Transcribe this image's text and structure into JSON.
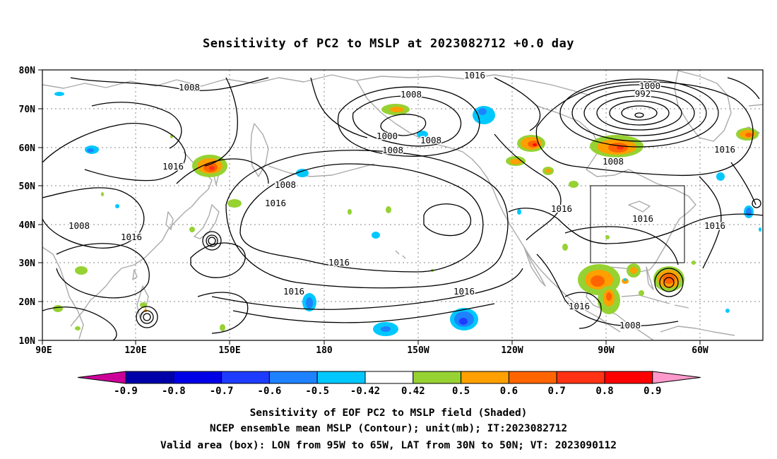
{
  "title": "Sensitivity of PC2 to MSLP at 2023082712 +0.0 day",
  "axes": {
    "lat_labels": [
      "80N",
      "70N",
      "60N",
      "50N",
      "40N",
      "30N",
      "20N",
      "10N"
    ],
    "lon_labels": [
      "90E",
      "120E",
      "150E",
      "180",
      "150W",
      "120W",
      "90W",
      "60W"
    ]
  },
  "colorbar": {
    "labels": [
      "-0.9",
      "-0.8",
      "-0.7",
      "-0.6",
      "-0.5",
      "-0.42",
      "0.42",
      "0.5",
      "0.6",
      "0.7",
      "0.8",
      "0.9"
    ],
    "colors": [
      "#cc0099",
      "#0000a8",
      "#0000e6",
      "#1e3cff",
      "#1e82ff",
      "#00c8ff",
      "#ffffff",
      "#96d232",
      "#ffa000",
      "#ff6400",
      "#ff3214",
      "#ff0000",
      "#ff99cc"
    ]
  },
  "contour_labels": [
    "1008",
    "1016",
    "1008",
    "1016",
    "1008",
    "1008",
    "1008",
    "1016",
    "1000",
    "1008",
    "1016",
    "1016",
    "1016",
    "1016",
    "1016",
    "1000",
    "992",
    "1016",
    "1008",
    "1016",
    "1016",
    "1016",
    "1008"
  ],
  "valid_box": {
    "lon_west": -95,
    "lon_east": -65,
    "lat_south": 30,
    "lat_north": 50
  },
  "captions": [
    "Sensitivity of EOF PC2 to MSLP field (Shaded)",
    "NCEP ensemble mean MSLP (Contour); unit(mb); IT:2023082712",
    "Valid area (box): LON from 95W to 65W, LAT from 30N to 50N; VT: 2023090112"
  ]
}
